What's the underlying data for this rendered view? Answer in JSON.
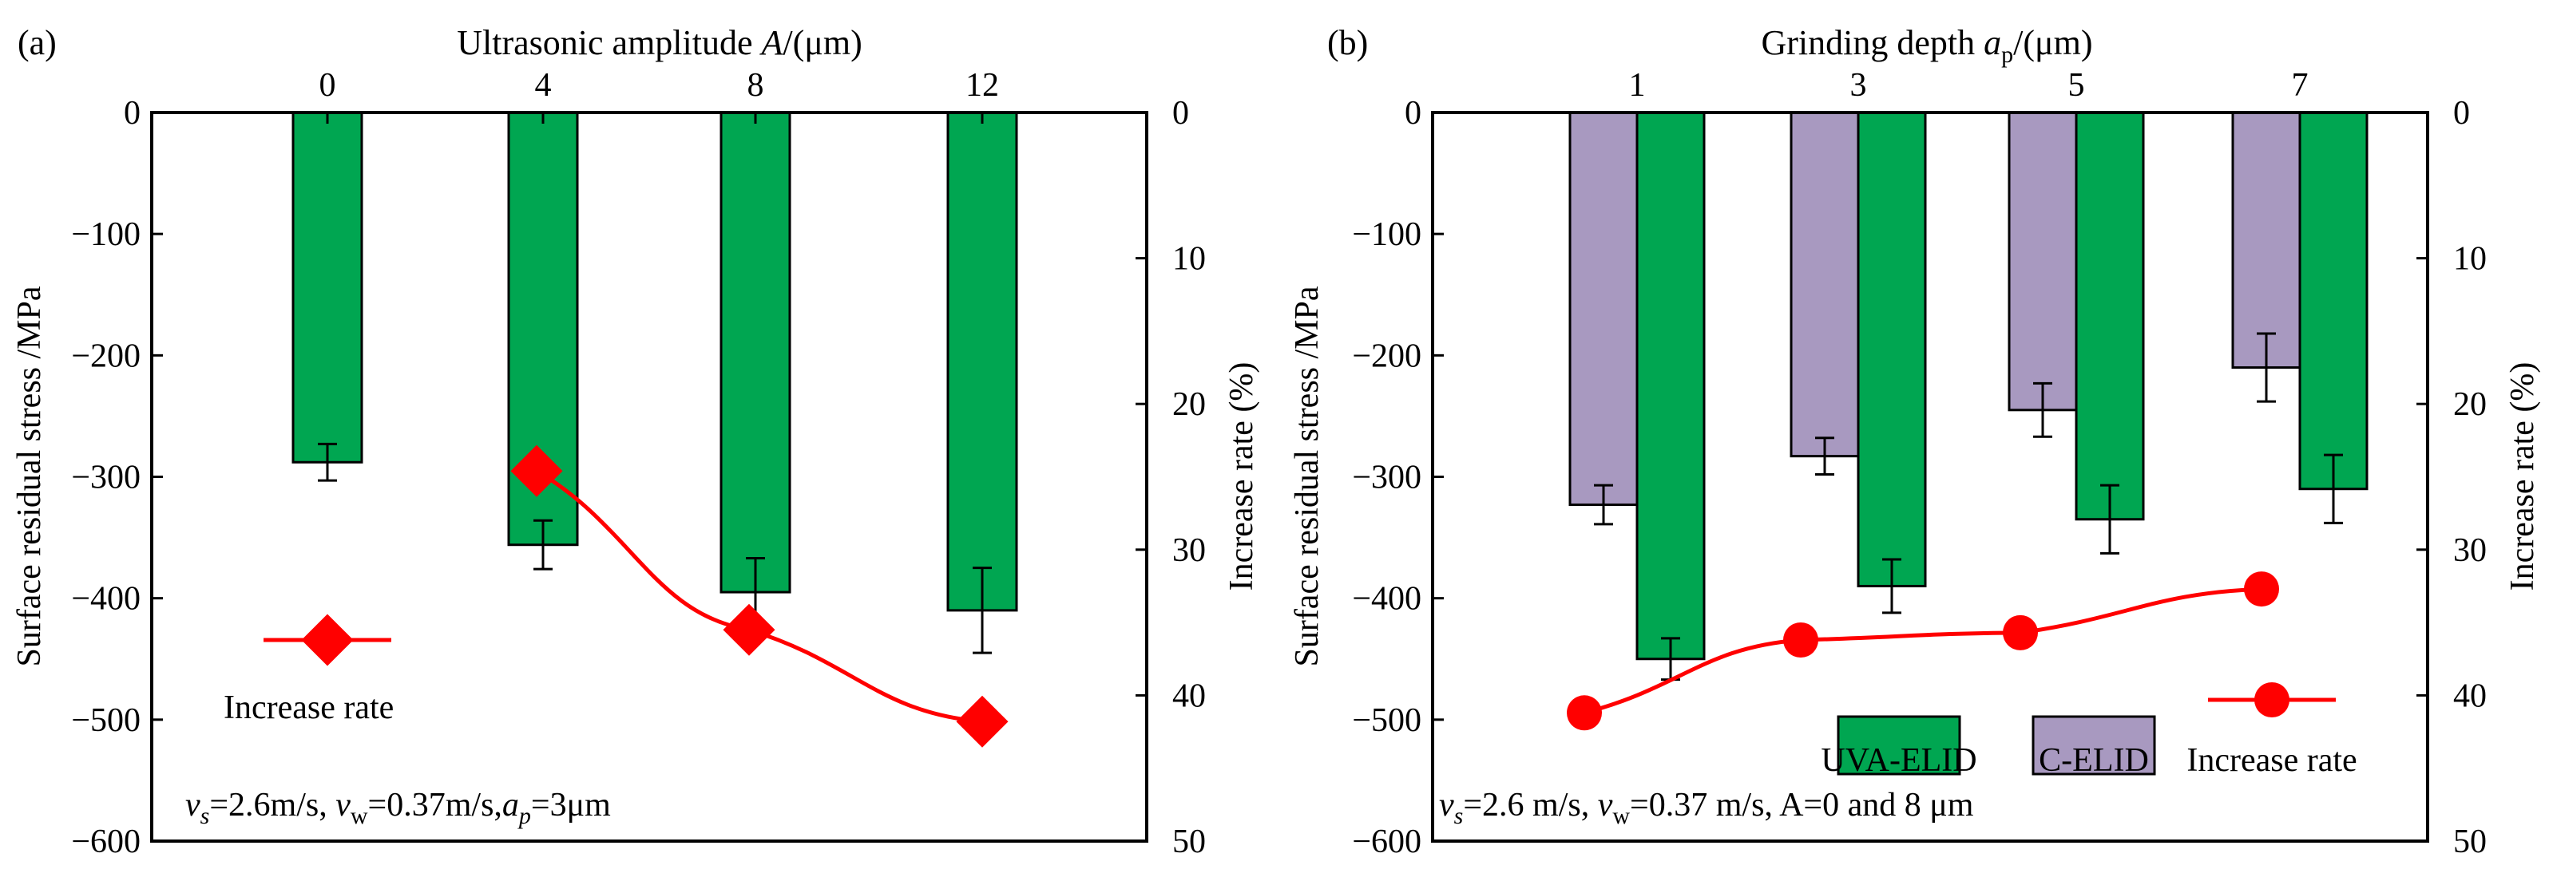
{
  "chart_data": [
    {
      "panel_label": "(a)",
      "type": "bar",
      "title": "",
      "xlabel": "Ultrasonic amplitude A/(μm)",
      "xlabel_parts": [
        "Ultrasonic amplitude ",
        "A",
        "/(μm)"
      ],
      "categories": [
        "0",
        "4",
        "8",
        "12"
      ],
      "ylabel": "Surface residual stress /MPa",
      "ylim": [
        -600,
        0
      ],
      "yticks": [
        "0",
        "−100",
        "−200",
        "−300",
        "−400",
        "−500",
        "−600"
      ],
      "y2label": "Increase rate (%)",
      "y2lim": [
        0,
        50
      ],
      "y2ticks": [
        "0",
        "10",
        "20",
        "30",
        "40",
        "50"
      ],
      "series": [
        {
          "values": [
            -288,
            -356,
            -395,
            -410
          ],
          "errors": [
            15,
            20,
            28,
            35
          ],
          "color": "#00a651"
        }
      ],
      "line_series": {
        "name": "Increase rate",
        "x_categories": [
          "4",
          "8",
          "12"
        ],
        "values": [
          24.6,
          35.5,
          41.8
        ],
        "marker": "diamond",
        "color": "#ff0000"
      },
      "annotation": "vs=2.6m/s, vw=0.37m/s,ap=3μm",
      "legend_position": "left-center"
    },
    {
      "panel_label": "(b)",
      "type": "bar",
      "title": "",
      "xlabel": "Grinding depth ap/(μm)",
      "xlabel_parts": [
        "Grinding depth ",
        "a",
        "p",
        "/(μm)"
      ],
      "categories": [
        "1",
        "3",
        "5",
        "7"
      ],
      "ylabel": "Surface residual stress /MPa",
      "ylim": [
        -600,
        0
      ],
      "yticks": [
        "0",
        "−100",
        "−200",
        "−300",
        "−400",
        "−500",
        "−600"
      ],
      "y2label": "Increase rate (%)",
      "y2lim": [
        0,
        50
      ],
      "y2ticks": [
        "0",
        "10",
        "20",
        "30",
        "40",
        "50"
      ],
      "series": [
        {
          "name": "C-ELID",
          "values": [
            -323,
            -283,
            -245,
            -210
          ],
          "errors": [
            16,
            15,
            22,
            28
          ],
          "color": "#a899c0"
        },
        {
          "name": "UVA-ELID",
          "values": [
            -450,
            -390,
            -335,
            -310
          ],
          "errors": [
            17,
            22,
            28,
            28
          ],
          "color": "#00a651"
        }
      ],
      "line_series": {
        "name": "Increase rate",
        "x_categories": [
          "1",
          "3",
          "5",
          "7"
        ],
        "values": [
          41.2,
          36.2,
          35.7,
          32.7
        ],
        "marker": "circle",
        "color": "#ff0000"
      },
      "annotation": "vs=2.6 m/s, vw=0.37 m/s, A=0 and 8 μm",
      "legend_position": "bottom-right"
    }
  ]
}
